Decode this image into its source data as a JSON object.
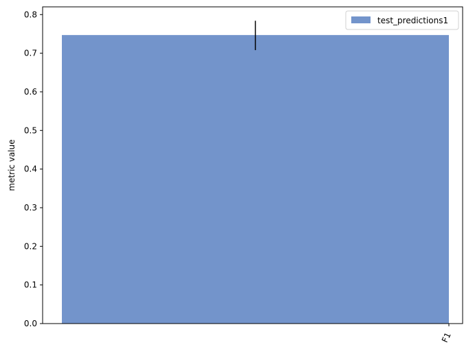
{
  "chart_data": {
    "type": "bar",
    "categories": [
      "F1"
    ],
    "series": [
      {
        "name": "test_predictions1",
        "values": [
          0.747
        ],
        "error": [
          [
            0.708,
            0.784
          ]
        ],
        "color": "#7394cb"
      }
    ],
    "xlabel": "",
    "ylabel": "metric value",
    "ylim": [
      0,
      0.82
    ],
    "yticks": [
      0.0,
      0.1,
      0.2,
      0.3,
      0.4,
      0.5,
      0.6,
      0.7,
      0.8
    ],
    "ytick_labels": [
      "0.0",
      "0.1",
      "0.2",
      "0.3",
      "0.4",
      "0.5",
      "0.6",
      "0.7",
      "0.8"
    ],
    "xtick_labels": [
      "F1"
    ],
    "grid": false,
    "legend": {
      "position": "top-right",
      "entries": [
        "test_predictions1"
      ]
    }
  }
}
